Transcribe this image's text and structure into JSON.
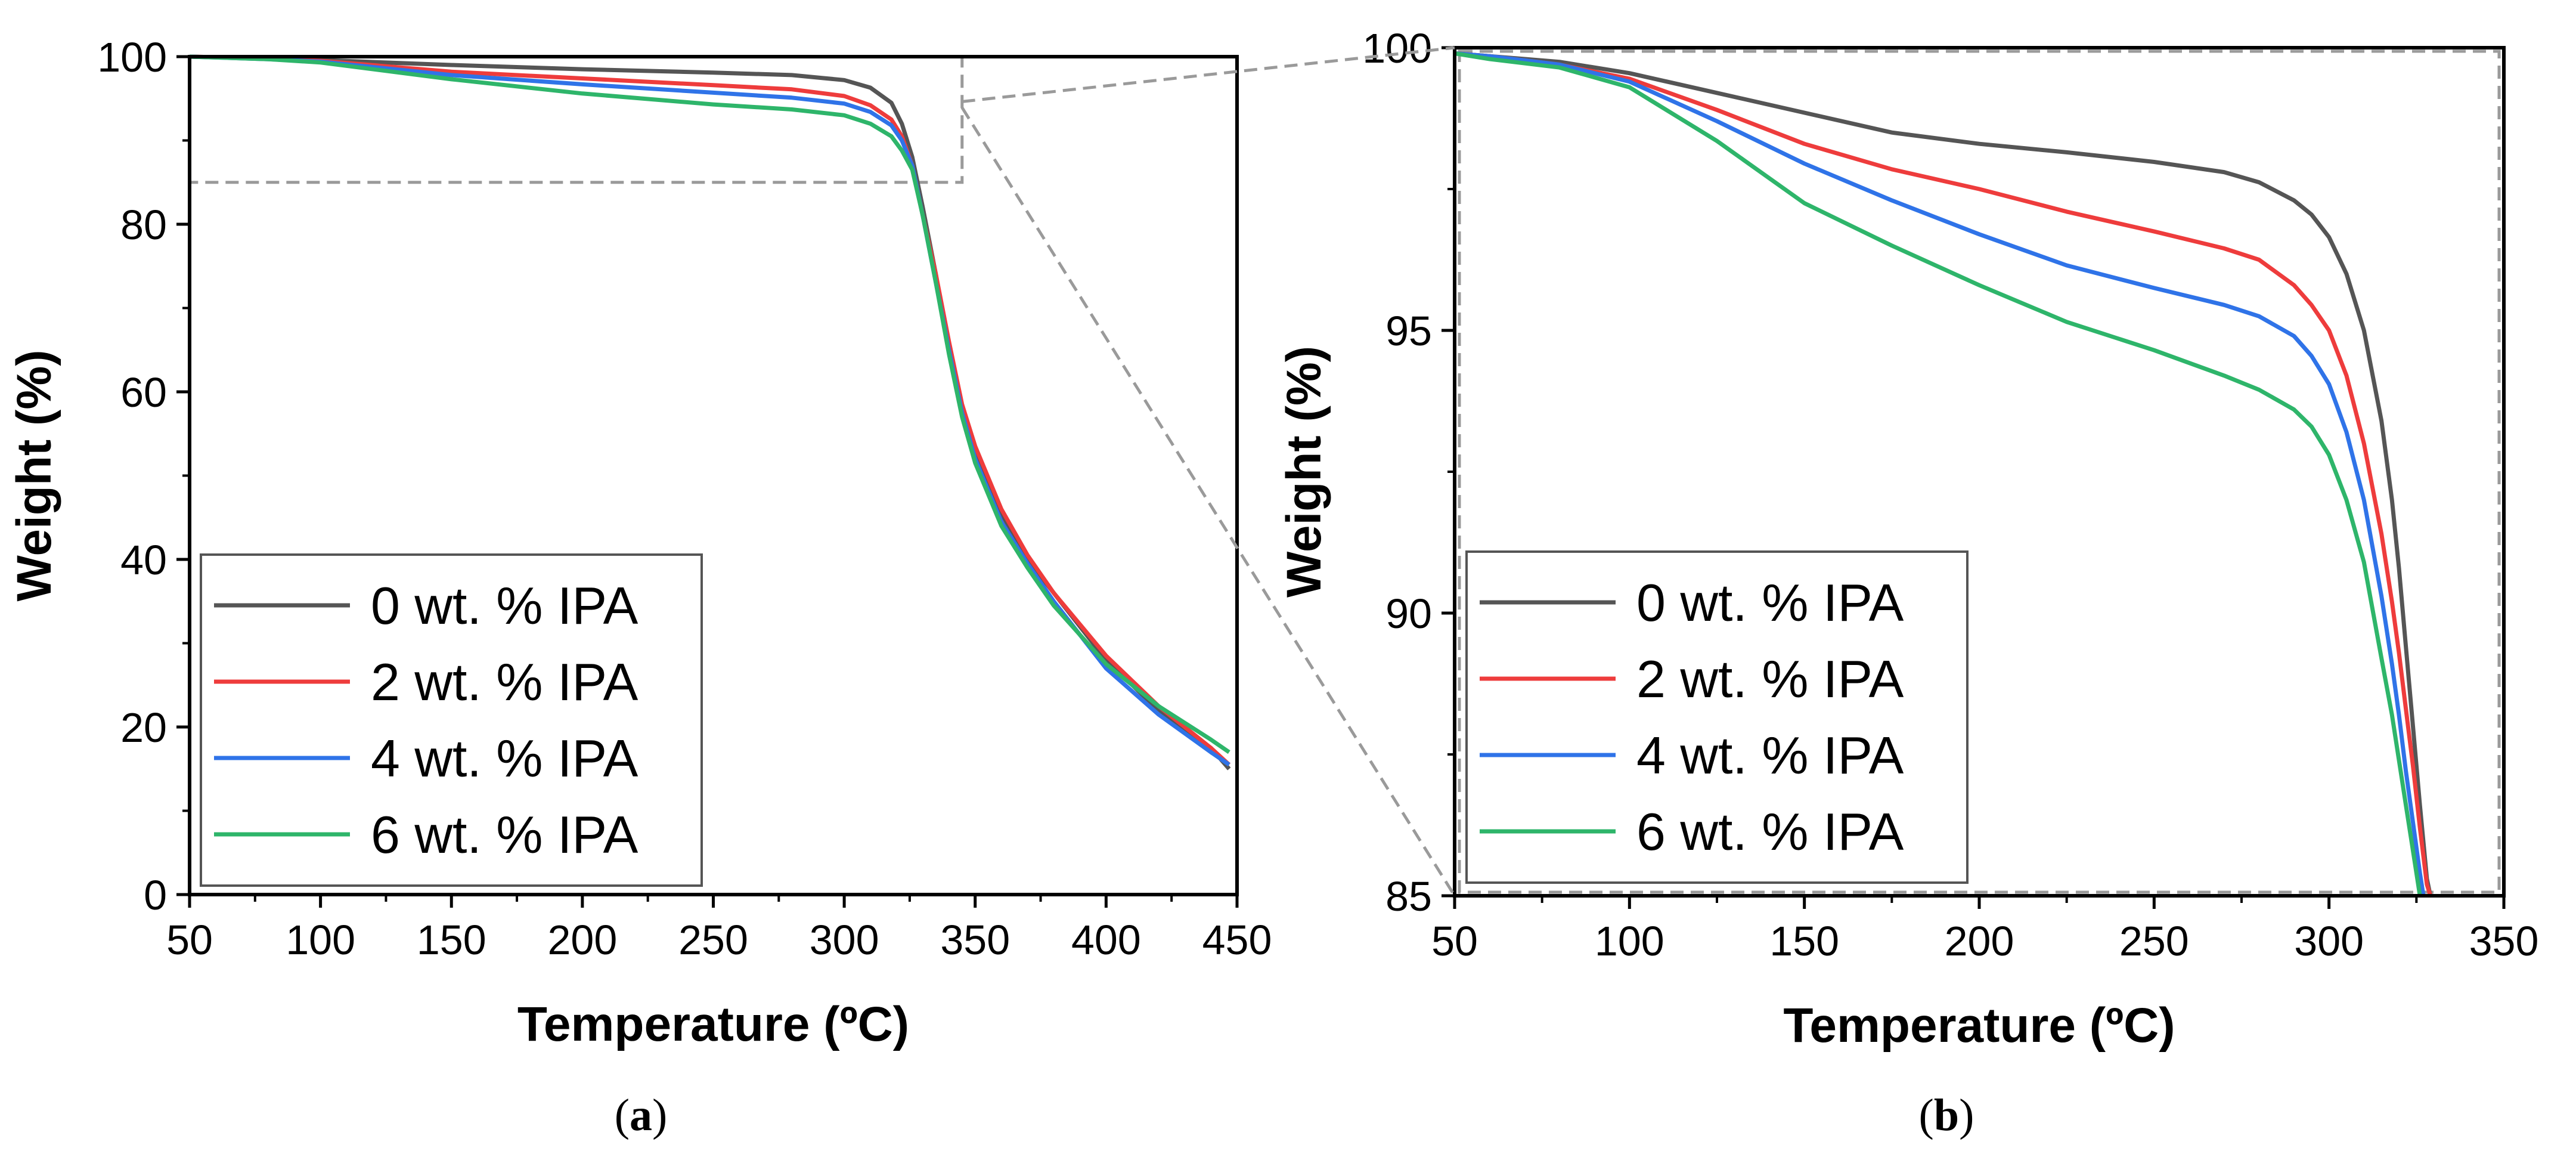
{
  "colors": {
    "0 wt. % IPA": "#555555",
    "2 wt. % IPA": "#ee3c3c",
    "4 wt. % IPA": "#2f73e8",
    "6 wt. % IPA": "#2eb56a",
    "inset_box": "#9a9a9a"
  },
  "panels": [
    {
      "caption_open": "(",
      "caption_letter": "a",
      "caption_close": ")"
    },
    {
      "caption_open": "(",
      "caption_letter": "b",
      "caption_close": ")"
    }
  ],
  "chart_data": [
    {
      "type": "line",
      "title": "",
      "xlabel": "Temperature (ºC)",
      "ylabel": "Weight (%)",
      "xlim": [
        50,
        450
      ],
      "ylim": [
        0,
        100
      ],
      "xticks": [
        50,
        100,
        150,
        200,
        250,
        300,
        350,
        400,
        450
      ],
      "yticks": [
        0,
        20,
        40,
        60,
        80,
        100
      ],
      "grid": false,
      "legend_position": "bottom-left",
      "zoom_box": {
        "x": [
          50,
          345
        ],
        "y": [
          85,
          100
        ]
      },
      "series": [
        {
          "name": "0 wt. % IPA",
          "x": [
            50,
            80,
            100,
            150,
            200,
            250,
            280,
            300,
            310,
            318,
            322,
            326,
            330,
            335,
            340,
            345,
            350,
            360,
            370,
            380,
            400,
            420,
            440,
            447
          ],
          "y": [
            100,
            99.8,
            99.6,
            99,
            98.5,
            98.1,
            97.8,
            97.2,
            96.3,
            94.5,
            92,
            88,
            82,
            74,
            65,
            58,
            53,
            45.5,
            40,
            36,
            28,
            22,
            17.5,
            15
          ]
        },
        {
          "name": "2 wt. % IPA",
          "x": [
            50,
            80,
            100,
            150,
            200,
            250,
            280,
            300,
            310,
            318,
            322,
            326,
            330,
            335,
            340,
            345,
            350,
            360,
            370,
            380,
            400,
            420,
            440,
            447
          ],
          "y": [
            100,
            99.8,
            99.5,
            98.2,
            97.4,
            96.6,
            96.1,
            95.3,
            94.2,
            92.5,
            90.5,
            87,
            81,
            74,
            66,
            58.5,
            53.5,
            46,
            40.5,
            36,
            28.5,
            22.5,
            17.5,
            15.5
          ]
        },
        {
          "name": "4 wt. % IPA",
          "x": [
            50,
            80,
            100,
            150,
            200,
            250,
            280,
            300,
            310,
            318,
            322,
            326,
            330,
            335,
            340,
            345,
            350,
            360,
            370,
            380,
            400,
            420,
            440,
            447
          ],
          "y": [
            100,
            99.7,
            99.4,
            97.8,
            96.7,
            95.7,
            95.1,
            94.4,
            93.4,
            91.8,
            90,
            87,
            81,
            73,
            65,
            57.5,
            52,
            44.5,
            39.5,
            35,
            27,
            21.5,
            17,
            15.5
          ]
        },
        {
          "name": "6 wt. % IPA",
          "x": [
            50,
            80,
            100,
            150,
            200,
            250,
            280,
            300,
            310,
            318,
            322,
            326,
            330,
            335,
            340,
            345,
            350,
            360,
            370,
            380,
            400,
            420,
            440,
            447
          ],
          "y": [
            100,
            99.7,
            99.3,
            97.3,
            95.6,
            94.3,
            93.7,
            93,
            92,
            90.5,
            88.8,
            86.5,
            81,
            73,
            64.5,
            57,
            51.5,
            44,
            39,
            34.5,
            27.5,
            22.5,
            18.5,
            17
          ]
        }
      ]
    },
    {
      "type": "line",
      "title": "",
      "xlabel": "Temperature (ºC)",
      "ylabel": "Weight (%)",
      "xlim": [
        50,
        350
      ],
      "ylim": [
        85,
        100
      ],
      "xticks": [
        50,
        100,
        150,
        200,
        250,
        300,
        350
      ],
      "yticks": [
        85,
        90,
        95,
        100
      ],
      "grid": false,
      "legend_position": "bottom-left",
      "series": [
        {
          "name": "0 wt. % IPA",
          "x": [
            50,
            60,
            80,
            100,
            125,
            150,
            175,
            200,
            225,
            250,
            270,
            280,
            290,
            295,
            300,
            305,
            310,
            315,
            318,
            320,
            322,
            324,
            326,
            328,
            329
          ],
          "y": [
            99.9,
            99.85,
            99.75,
            99.55,
            99.2,
            98.85,
            98.5,
            98.3,
            98.15,
            97.98,
            97.8,
            97.62,
            97.3,
            97.05,
            96.65,
            96,
            95,
            93.4,
            92,
            90.8,
            89.4,
            88,
            86.6,
            85.3,
            85
          ]
        },
        {
          "name": "2 wt. % IPA",
          "x": [
            50,
            60,
            80,
            100,
            125,
            150,
            175,
            200,
            225,
            250,
            270,
            280,
            290,
            295,
            300,
            305,
            310,
            315,
            318,
            320,
            322,
            324,
            326,
            328,
            329
          ],
          "y": [
            99.9,
            99.85,
            99.7,
            99.45,
            98.9,
            98.3,
            97.85,
            97.5,
            97.1,
            96.75,
            96.45,
            96.25,
            95.8,
            95.45,
            95,
            94.2,
            93,
            91.4,
            90.2,
            89.3,
            88.3,
            87.3,
            86.2,
            85.2,
            85
          ]
        },
        {
          "name": "4 wt. % IPA",
          "x": [
            50,
            60,
            80,
            100,
            125,
            150,
            175,
            200,
            225,
            250,
            270,
            280,
            290,
            295,
            300,
            305,
            310,
            315,
            318,
            320,
            322,
            324,
            326,
            327
          ],
          "y": [
            99.9,
            99.85,
            99.7,
            99.4,
            98.7,
            97.95,
            97.3,
            96.7,
            96.15,
            95.75,
            95.45,
            95.25,
            94.9,
            94.55,
            94.05,
            93.2,
            92,
            90.3,
            89.1,
            88.2,
            87.2,
            86.3,
            85.4,
            85
          ]
        },
        {
          "name": "6 wt. % IPA",
          "x": [
            50,
            60,
            80,
            100,
            125,
            150,
            175,
            200,
            225,
            250,
            270,
            280,
            290,
            295,
            300,
            305,
            310,
            315,
            318,
            320,
            322,
            324,
            326
          ],
          "y": [
            99.9,
            99.8,
            99.65,
            99.3,
            98.35,
            97.25,
            96.5,
            95.8,
            95.15,
            94.65,
            94.2,
            93.95,
            93.6,
            93.3,
            92.8,
            92,
            90.9,
            89.2,
            88.2,
            87.4,
            86.6,
            85.8,
            85
          ]
        }
      ]
    }
  ]
}
